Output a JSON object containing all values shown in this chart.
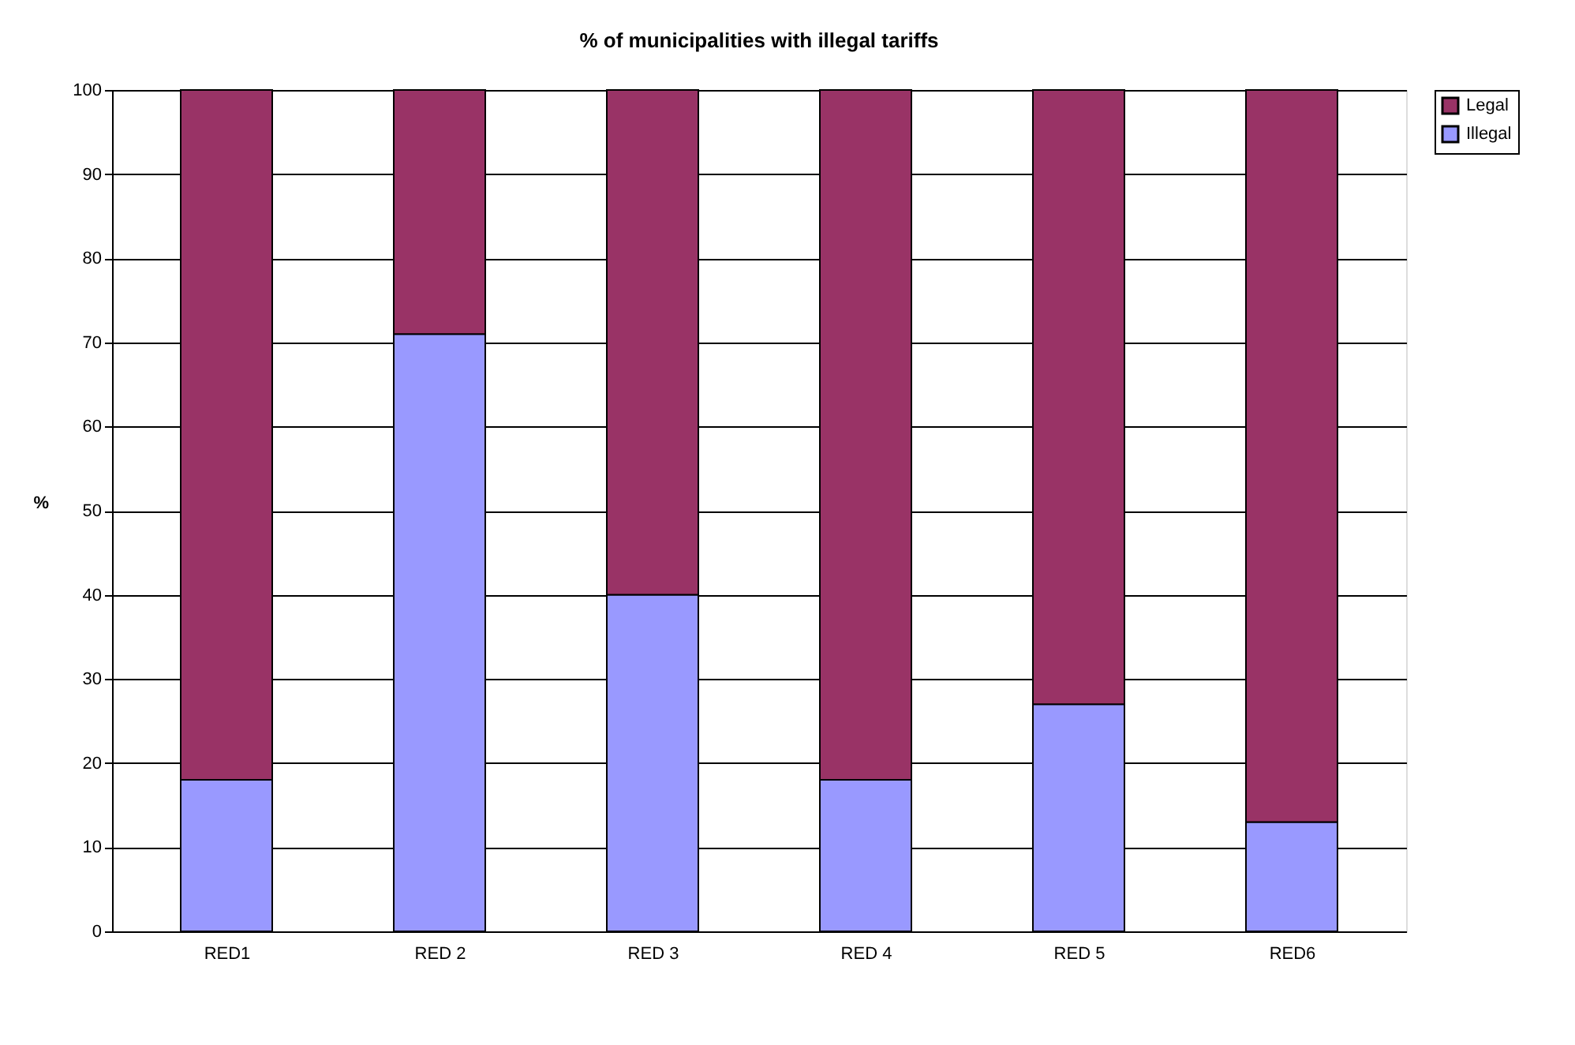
{
  "chart_data": {
    "type": "bar",
    "title": "% of municipalities with illegal tariffs",
    "ylabel": "%",
    "categories": [
      "RED1",
      "RED 2",
      "RED 3",
      "RED 4",
      "RED 5",
      "RED6"
    ],
    "stacked": true,
    "series": [
      {
        "name": "Illegal",
        "color": "#9999ff",
        "values": [
          18,
          71,
          40,
          18,
          27,
          13
        ]
      },
      {
        "name": "Legal",
        "color": "#993366",
        "values": [
          82,
          29,
          60,
          82,
          73,
          87
        ]
      }
    ],
    "ylim": [
      0,
      100
    ],
    "yticks": [
      0,
      10,
      20,
      30,
      40,
      50,
      60,
      70,
      80,
      90,
      100
    ],
    "grid": "y",
    "legend": "right"
  }
}
